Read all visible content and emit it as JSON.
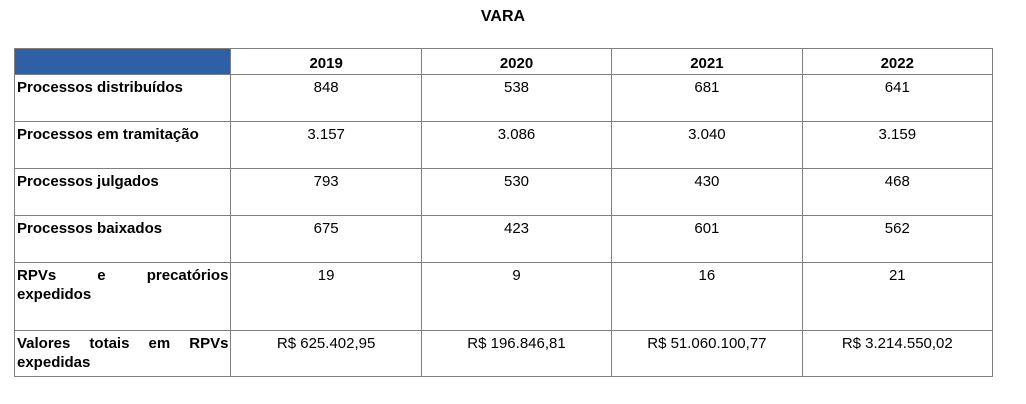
{
  "title": "VARA",
  "table": {
    "columns": [
      "2019",
      "2020",
      "2021",
      "2022"
    ],
    "rows": [
      {
        "label": "Processos distribuídos",
        "values": [
          "848",
          "538",
          "681",
          "641"
        ]
      },
      {
        "label": "Processos em tramitação",
        "values": [
          "3.157",
          "3.086",
          "3.040",
          "3.159"
        ]
      },
      {
        "label": "Processos julgados",
        "values": [
          "793",
          "530",
          "430",
          "468"
        ]
      },
      {
        "label": "Processos baixados",
        "values": [
          "675",
          "423",
          "601",
          "562"
        ]
      },
      {
        "label": "RPVs e precatórios expedidos",
        "values": [
          "19",
          "9",
          "16",
          "21"
        ]
      },
      {
        "label": "Valores totais em RPVs expedidas",
        "values": [
          "R$ 625.402,95",
          "R$ 196.846,81",
          "R$ 51.060.100,77",
          "R$ 3.214.550,02"
        ]
      }
    ]
  },
  "colors": {
    "header_corner": "#2e60a6",
    "border": "#7f7f7f"
  }
}
